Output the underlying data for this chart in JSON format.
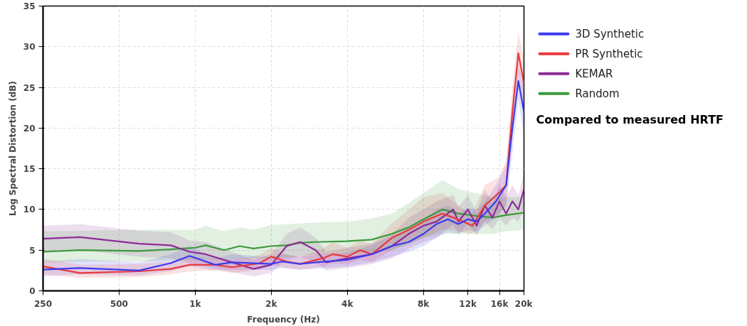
{
  "chart_data": {
    "type": "line",
    "xlabel": "Frequency (Hz)",
    "ylabel": "Log Spectral Distortion (dB)",
    "log": "x",
    "grid": true,
    "legend": "right",
    "line_style": "solid",
    "marker": "none",
    "xlim": [
      250,
      20000
    ],
    "ylim": [
      0,
      35
    ],
    "xticks": [
      250,
      500,
      {
        "value": 1000,
        "label": "1k"
      },
      {
        "value": 2000,
        "label": "2k"
      },
      {
        "value": 4000,
        "label": "4k"
      },
      {
        "value": 8000,
        "label": "8k"
      },
      {
        "value": 12000,
        "label": "12k"
      },
      {
        "value": 16000,
        "label": "16k"
      },
      {
        "value": 20000,
        "label": "20k"
      }
    ],
    "yticks": [
      0,
      5,
      10,
      15,
      20,
      25,
      30,
      35
    ],
    "annotations": [
      "Compared to measured HRTF"
    ],
    "series": [
      {
        "name": "3D Synthetic",
        "color": "#3b3bf0",
        "x": [
          250,
          350,
          600,
          800,
          950,
          1200,
          1400,
          2000,
          2200,
          2600,
          3000,
          4000,
          5000,
          6000,
          7000,
          8000,
          9000,
          10000,
          11000,
          12000,
          13000,
          14000,
          15500,
          17000,
          18000,
          19000,
          20000
        ],
        "values": [
          2.6,
          2.8,
          2.5,
          3.4,
          4.3,
          3.2,
          3.5,
          3.3,
          3.6,
          3.3,
          3.5,
          3.8,
          4.5,
          5.5,
          6.0,
          7.0,
          8.2,
          8.8,
          8.2,
          8.8,
          8.5,
          9.5,
          11.0,
          13.0,
          20.0,
          25.8,
          22.0
        ],
        "lower": [
          1.8,
          2.0,
          1.9,
          2.4,
          3.0,
          2.5,
          2.6,
          2.6,
          2.8,
          2.6,
          2.7,
          3.0,
          3.5,
          4.2,
          4.8,
          5.5,
          6.5,
          7.2,
          7.0,
          7.5,
          7.2,
          8.0,
          9.0,
          10.5,
          17.0,
          23.5,
          19.0
        ],
        "upper": [
          3.6,
          3.9,
          3.5,
          4.5,
          5.5,
          4.0,
          4.5,
          4.2,
          4.5,
          4.2,
          4.4,
          4.7,
          5.6,
          6.8,
          7.4,
          8.6,
          10.0,
          10.5,
          9.6,
          10.2,
          10.0,
          11.0,
          13.0,
          15.5,
          22.5,
          28.0,
          25.0
        ]
      },
      {
        "name": "PR Synthetic",
        "color": "#e83a3a",
        "x": [
          250,
          350,
          600,
          800,
          950,
          1200,
          1400,
          1800,
          2000,
          2300,
          2600,
          3200,
          3500,
          4000,
          4500,
          5000,
          6000,
          7000,
          8000,
          9500,
          10500,
          11500,
          12500,
          14000,
          16000,
          17000,
          18000,
          19000,
          20000
        ],
        "values": [
          3.0,
          2.2,
          2.4,
          2.7,
          3.2,
          3.2,
          2.9,
          3.4,
          4.2,
          3.6,
          3.3,
          4.0,
          4.5,
          4.2,
          5.0,
          4.5,
          6.5,
          7.5,
          8.5,
          9.5,
          9.0,
          8.5,
          8.0,
          10.5,
          12.1,
          13.0,
          22.0,
          29.2,
          25.5
        ],
        "lower": [
          2.0,
          1.6,
          1.7,
          2.0,
          2.4,
          2.5,
          2.2,
          2.6,
          3.2,
          2.8,
          2.6,
          3.0,
          3.4,
          3.3,
          3.8,
          3.6,
          5.0,
          5.8,
          6.5,
          7.5,
          7.5,
          7.2,
          7.0,
          8.5,
          9.5,
          10.5,
          19.0,
          26.5,
          22.5
        ],
        "upper": [
          4.0,
          3.2,
          3.3,
          3.6,
          4.2,
          4.0,
          3.8,
          4.4,
          5.3,
          4.5,
          4.2,
          5.2,
          6.0,
          5.3,
          6.2,
          5.8,
          8.3,
          10.0,
          11.5,
          12.0,
          11.0,
          10.0,
          9.5,
          13.0,
          14.0,
          16.0,
          25.0,
          31.8,
          28.5
        ]
      },
      {
        "name": "KEMAR",
        "color": "#8e2b96",
        "x": [
          250,
          350,
          600,
          800,
          950,
          1100,
          1400,
          1700,
          2000,
          2300,
          2600,
          3000,
          3300,
          4000,
          5000,
          6000,
          7000,
          8000,
          9000,
          10500,
          11000,
          12000,
          13000,
          14000,
          15000,
          16000,
          17000,
          18000,
          19000,
          20000
        ],
        "values": [
          6.4,
          6.6,
          5.8,
          5.6,
          4.8,
          4.5,
          3.5,
          2.7,
          3.2,
          5.5,
          6.0,
          5.0,
          3.5,
          4.0,
          4.5,
          5.5,
          7.0,
          8.0,
          8.5,
          10.0,
          8.5,
          10.0,
          8.0,
          10.5,
          9.0,
          11.0,
          9.5,
          11.0,
          10.0,
          12.5
        ],
        "lower": [
          4.8,
          5.0,
          4.2,
          4.0,
          3.4,
          3.0,
          2.3,
          1.8,
          2.2,
          3.8,
          4.2,
          3.5,
          2.5,
          2.8,
          3.3,
          4.0,
          5.2,
          6.0,
          6.5,
          8.2,
          7.0,
          8.2,
          6.8,
          8.5,
          7.5,
          9.0,
          8.0,
          9.0,
          8.5,
          10.0
        ],
        "upper": [
          8.0,
          8.2,
          7.4,
          7.2,
          6.2,
          6.0,
          4.8,
          3.8,
          4.5,
          7.0,
          7.8,
          6.5,
          4.8,
          5.3,
          5.8,
          7.0,
          9.0,
          10.0,
          11.0,
          11.8,
          10.3,
          11.8,
          9.6,
          12.5,
          10.8,
          13.0,
          11.5,
          13.0,
          11.8,
          14.5
        ]
      },
      {
        "name": "Random",
        "color": "#3a9a3a",
        "x": [
          250,
          350,
          600,
          800,
          1000,
          1100,
          1300,
          1500,
          1700,
          2000,
          2300,
          2600,
          3000,
          4000,
          5000,
          6000,
          7000,
          8000,
          9500,
          11000,
          13000,
          15000,
          17000,
          20000
        ],
        "values": [
          4.8,
          5.0,
          4.9,
          5.1,
          5.3,
          5.6,
          5.0,
          5.5,
          5.2,
          5.5,
          5.6,
          5.9,
          6.0,
          6.1,
          6.3,
          7.0,
          7.8,
          8.8,
          10.0,
          9.5,
          9.2,
          9.0,
          9.3,
          9.6
        ],
        "lower": [
          3.5,
          3.6,
          3.6,
          3.7,
          3.8,
          3.9,
          3.8,
          3.9,
          3.9,
          4.0,
          4.1,
          4.3,
          4.4,
          4.5,
          4.7,
          5.0,
          5.7,
          6.5,
          7.0,
          7.0,
          7.0,
          7.0,
          7.3,
          7.5
        ],
        "upper": [
          7.3,
          7.4,
          7.5,
          7.5,
          7.5,
          8.0,
          7.3,
          7.8,
          7.5,
          8.1,
          8.2,
          8.3,
          8.4,
          8.5,
          8.9,
          9.5,
          10.8,
          12.0,
          13.6,
          12.5,
          12.0,
          11.5,
          11.5,
          11.5
        ]
      }
    ]
  }
}
